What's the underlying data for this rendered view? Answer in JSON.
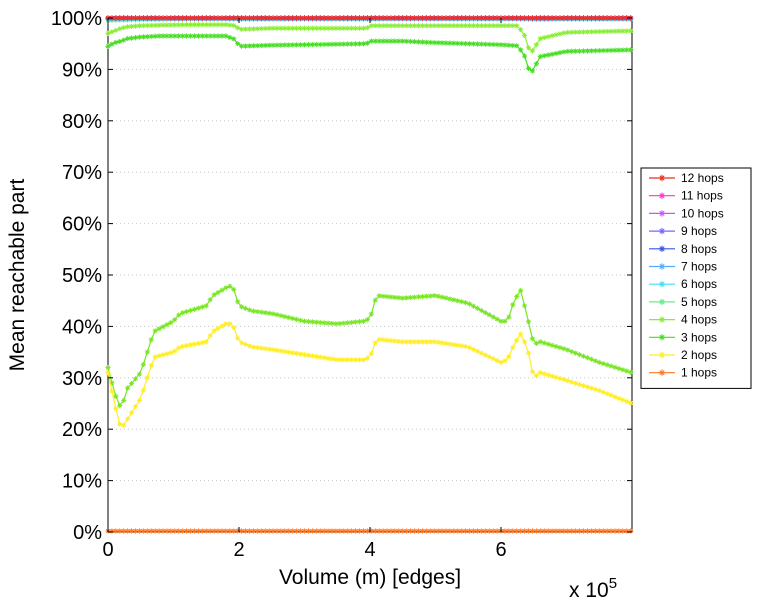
{
  "chart_data": {
    "type": "line",
    "xlabel": "Volume (m) [edges]",
    "ylabel": "Mean reachable part",
    "x_multiplier_label": "x 10",
    "x_multiplier_exponent": "5",
    "xlim": [
      0,
      800000
    ],
    "ylim": [
      0,
      1
    ],
    "x_ticks": [
      0,
      200000,
      400000,
      600000
    ],
    "x_tick_labels": [
      "0",
      "2",
      "4",
      "6"
    ],
    "y_ticks": [
      0,
      0.1,
      0.2,
      0.3,
      0.4,
      0.5,
      0.6,
      0.7,
      0.8,
      0.9,
      1.0
    ],
    "y_tick_labels": [
      "0%",
      "10%",
      "20%",
      "30%",
      "40%",
      "50%",
      "60%",
      "70%",
      "80%",
      "90%",
      "100%"
    ],
    "grid": "horizontal-dotted",
    "legend_position": "right",
    "series": [
      {
        "name": "12 hops",
        "color": "#e8301a",
        "x": [
          0,
          800000
        ],
        "y": [
          1.0,
          1.0
        ]
      },
      {
        "name": "11 hops",
        "color": "#ff33cc",
        "x": [
          0,
          800000
        ],
        "y": [
          1.0,
          1.0
        ]
      },
      {
        "name": "10 hops",
        "color": "#cc55ff",
        "x": [
          0,
          800000
        ],
        "y": [
          1.0,
          1.0
        ]
      },
      {
        "name": "9 hops",
        "color": "#7766ff",
        "x": [
          0,
          800000
        ],
        "y": [
          1.0,
          1.0
        ]
      },
      {
        "name": "8 hops",
        "color": "#3355ee",
        "x": [
          0,
          800000
        ],
        "y": [
          1.0,
          1.0
        ]
      },
      {
        "name": "7 hops",
        "color": "#55aaff",
        "x": [
          0,
          800000
        ],
        "y": [
          0.999,
          0.999
        ]
      },
      {
        "name": "6 hops",
        "color": "#44ddee",
        "x": [
          0,
          800000
        ],
        "y": [
          0.998,
          0.998
        ]
      },
      {
        "name": "5 hops",
        "color": "#66ee88",
        "x": [
          0,
          20000,
          50000,
          100000,
          190000,
          200000,
          300000,
          390000,
          400000,
          500000,
          600000,
          640000,
          650000,
          700000,
          800000
        ],
        "y": [
          0.995,
          0.996,
          0.997,
          0.998,
          0.999,
          0.998,
          0.998,
          0.998,
          0.999,
          0.999,
          0.999,
          0.998,
          0.997,
          0.998,
          0.998
        ]
      },
      {
        "name": "4 hops",
        "color": "#88ee33",
        "x": [
          0,
          10000,
          20000,
          30000,
          50000,
          80000,
          120000,
          180000,
          195000,
          200000,
          250000,
          300000,
          350000,
          395000,
          400000,
          450000,
          500000,
          550000,
          600000,
          625000,
          635000,
          645000,
          660000,
          700000,
          800000
        ],
        "y": [
          0.97,
          0.975,
          0.98,
          0.983,
          0.985,
          0.986,
          0.987,
          0.987,
          0.985,
          0.978,
          0.98,
          0.98,
          0.98,
          0.98,
          0.985,
          0.985,
          0.985,
          0.985,
          0.985,
          0.985,
          0.97,
          0.93,
          0.96,
          0.972,
          0.975
        ]
      },
      {
        "name": "3 hops",
        "color": "#44dd22",
        "x": [
          0,
          10000,
          20000,
          30000,
          50000,
          80000,
          120000,
          180000,
          195000,
          200000,
          250000,
          300000,
          350000,
          395000,
          400000,
          450000,
          500000,
          550000,
          600000,
          625000,
          635000,
          645000,
          660000,
          700000,
          800000
        ],
        "y": [
          0.945,
          0.952,
          0.955,
          0.96,
          0.963,
          0.965,
          0.965,
          0.965,
          0.958,
          0.945,
          0.947,
          0.948,
          0.949,
          0.95,
          0.955,
          0.955,
          0.952,
          0.95,
          0.948,
          0.946,
          0.93,
          0.89,
          0.925,
          0.935,
          0.938
        ]
      },
      {
        "name": "2 hops",
        "color": "#ffee22",
        "x": [
          0,
          10000,
          20000,
          30000,
          50000,
          60000,
          70000,
          100000,
          110000,
          150000,
          160000,
          180000,
          190000,
          200000,
          220000,
          250000,
          300000,
          350000,
          390000,
          400000,
          410000,
          450000,
          500000,
          550000,
          600000,
          610000,
          620000,
          630000,
          640000,
          650000,
          660000,
          700000,
          750000,
          800000
        ],
        "y": [
          0.31,
          0.25,
          0.2,
          0.22,
          0.26,
          0.3,
          0.34,
          0.35,
          0.36,
          0.37,
          0.39,
          0.405,
          0.405,
          0.37,
          0.36,
          0.355,
          0.345,
          0.335,
          0.335,
          0.34,
          0.375,
          0.37,
          0.37,
          0.36,
          0.33,
          0.335,
          0.365,
          0.385,
          0.36,
          0.3,
          0.31,
          0.295,
          0.275,
          0.25
        ]
      },
      {
        "name": "1 hops",
        "color": "#ff7722",
        "x": [
          0,
          800000
        ],
        "y": [
          0.002,
          0.002
        ]
      },
      {
        "name": "",
        "color": "#77e622",
        "x": [
          0,
          10000,
          20000,
          30000,
          50000,
          60000,
          70000,
          100000,
          110000,
          150000,
          160000,
          180000,
          190000,
          200000,
          220000,
          250000,
          300000,
          350000,
          390000,
          400000,
          410000,
          450000,
          500000,
          550000,
          600000,
          610000,
          620000,
          630000,
          640000,
          650000,
          660000,
          700000,
          750000,
          800000
        ],
        "y": [
          0.32,
          0.27,
          0.24,
          0.28,
          0.31,
          0.35,
          0.39,
          0.41,
          0.425,
          0.44,
          0.46,
          0.475,
          0.48,
          0.44,
          0.43,
          0.425,
          0.41,
          0.405,
          0.41,
          0.415,
          0.46,
          0.455,
          0.46,
          0.445,
          0.41,
          0.41,
          0.45,
          0.47,
          0.42,
          0.365,
          0.37,
          0.355,
          0.33,
          0.31
        ]
      }
    ]
  }
}
